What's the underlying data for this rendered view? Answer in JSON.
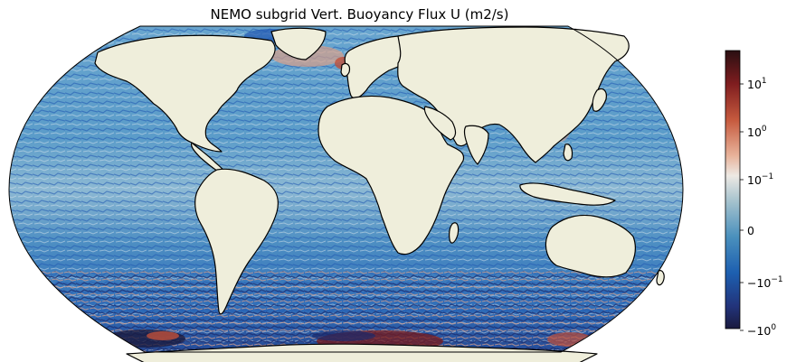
{
  "figure": {
    "title": "NEMO subgrid Vert. Buoyancy Flux U (m2/s)"
  },
  "map": {
    "projection": "robinson-like",
    "land_color": "#efeedb",
    "coastline_color": "#000000",
    "ocean_palette": [
      "#1b2a6b",
      "#1f55b0",
      "#3b82c4",
      "#7fb2d2",
      "#b8cfd9",
      "#e8e4e0",
      "#d9a08a",
      "#c0503a",
      "#7a1a1a"
    ]
  },
  "colorbar": {
    "scale": "symlog",
    "ticks": [
      {
        "base": "10",
        "exp": "1",
        "sign": ""
      },
      {
        "base": "10",
        "exp": "0",
        "sign": ""
      },
      {
        "base": "10",
        "exp": "−1",
        "sign": ""
      },
      {
        "base": "0",
        "exp": "",
        "sign": ""
      },
      {
        "base": "10",
        "exp": "−1",
        "sign": "−"
      },
      {
        "base": "10",
        "exp": "0",
        "sign": "−"
      }
    ],
    "stops": [
      "#2a0f12",
      "#7f1d1f",
      "#c65a3e",
      "#e8b49c",
      "#ede9e4",
      "#9fbfcc",
      "#4a90bd",
      "#1d5fb0",
      "#22337a",
      "#1a1a3e"
    ]
  }
}
